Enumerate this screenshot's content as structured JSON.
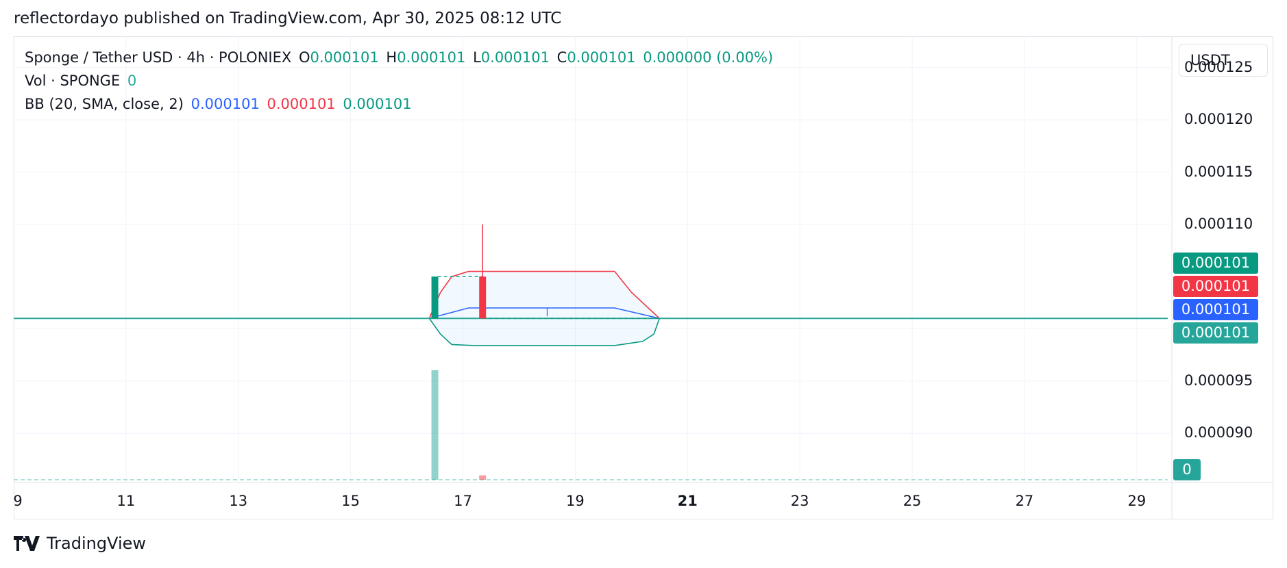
{
  "header": {
    "published": "reflectordayo published on TradingView.com, Apr 30, 2025 08:12 UTC"
  },
  "legend": {
    "symbol": "Sponge / Tether USD · 4h · POLONIEX",
    "o_label": "O",
    "o": "0.000101",
    "h_label": "H",
    "h": "0.000101",
    "l_label": "L",
    "l": "0.000101",
    "c_label": "C",
    "c": "0.000101",
    "change": "0.000000 (0.00%)",
    "vol_label": "Vol · SPONGE",
    "vol": "0",
    "bb_label": "BB (20, SMA, close, 2)",
    "bb_basis": "0.000101",
    "bb_upper": "0.000101",
    "bb_lower": "0.000101"
  },
  "currency": "USDT",
  "price_badges": [
    "0.000101",
    "0.000101",
    "0.000101",
    "0.000101"
  ],
  "volume_badge": "0",
  "branding": {
    "name": "TradingView"
  },
  "colors": {
    "up": "#089981",
    "down": "#f23645",
    "basis": "#2962ff",
    "band_upper": "#f23645",
    "band_lower": "#089981",
    "price_line": "#26a69a"
  },
  "chart_data": {
    "type": "candlestick",
    "ylim": [
      8.53e-05,
      0.000128
    ],
    "y_ticks": [
      "0.000125",
      "0.000120",
      "0.000115",
      "0.000110",
      "0.000100",
      "0.000095",
      "0.000090"
    ],
    "y_tick_values": [
      0.000125,
      0.00012,
      0.000115,
      0.00011,
      0.0001,
      9.5e-05,
      9e-05
    ],
    "x_ticks": [
      "9",
      "11",
      "13",
      "15",
      "17",
      "19",
      "21",
      "23",
      "25",
      "27",
      "29"
    ],
    "x_tick_days": [
      9,
      11,
      13,
      15,
      17,
      19,
      21,
      23,
      25,
      27,
      29
    ],
    "xlim_days": [
      9.0,
      29.6
    ],
    "price_line": [
      {
        "day": 9.0,
        "value": 0.000101
      },
      {
        "day": 29.55,
        "value": 0.000101
      }
    ],
    "candles": [
      {
        "day": 16.5,
        "open": 0.000101,
        "high": 0.000105,
        "low": 0.000101,
        "close": 0.000105
      },
      {
        "day": 17.35,
        "open": 0.000105,
        "high": 0.00011,
        "low": 0.000101,
        "close": 0.000101
      }
    ],
    "volume": [
      {
        "day": 16.5,
        "value": 1.0
      },
      {
        "day": 17.35,
        "value": 0.04
      }
    ],
    "bollinger": {
      "upper": [
        [
          16.4,
          0.000101
        ],
        [
          16.6,
          0.0001035
        ],
        [
          16.8,
          0.000105
        ],
        [
          17.1,
          0.0001055
        ],
        [
          19.7,
          0.0001055
        ],
        [
          20.0,
          0.0001035
        ],
        [
          20.3,
          0.000102
        ],
        [
          20.5,
          0.000101
        ]
      ],
      "basis": [
        [
          16.4,
          0.000101
        ],
        [
          17.1,
          0.000102
        ],
        [
          19.7,
          0.000102
        ],
        [
          20.5,
          0.000101
        ]
      ],
      "lower": [
        [
          16.4,
          0.000101
        ],
        [
          16.6,
          9.95e-05
        ],
        [
          16.8,
          9.85e-05
        ],
        [
          17.2,
          9.84e-05
        ],
        [
          19.7,
          9.84e-05
        ],
        [
          20.2,
          9.88e-05
        ],
        [
          20.4,
          9.95e-05
        ],
        [
          20.5,
          0.000101
        ]
      ]
    },
    "grid": true
  }
}
